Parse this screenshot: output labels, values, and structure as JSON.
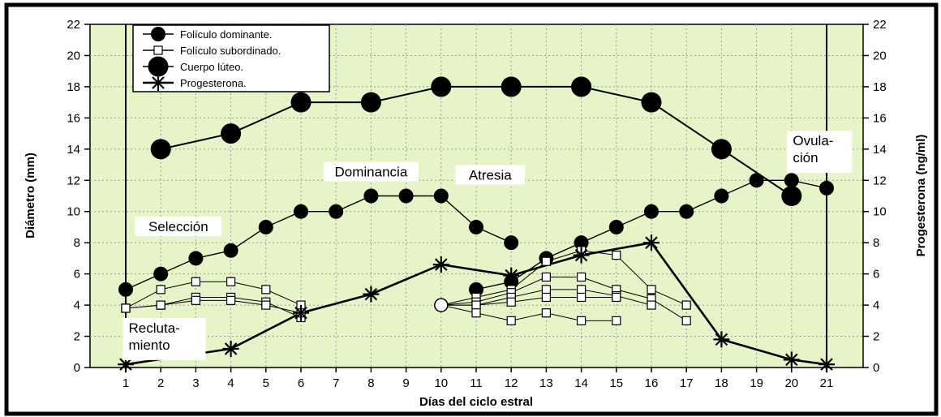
{
  "chart_data": {
    "type": "line",
    "title": "",
    "xlabel": "Días del ciclo estral",
    "ylabel_left": "Diámetro (mm)",
    "ylabel_right": "Progesterona (ng/ml)",
    "categories": [
      "1",
      "2",
      "3",
      "4",
      "5",
      "6",
      "7",
      "8",
      "9",
      "10",
      "11",
      "12",
      "13",
      "14",
      "15",
      "16",
      "17",
      "18",
      "19",
      "20",
      "21"
    ],
    "ylim": [
      0,
      22
    ],
    "y_ticks": [
      0,
      2,
      4,
      6,
      8,
      10,
      12,
      14,
      16,
      18,
      20,
      22
    ],
    "y2lim": [
      0,
      22
    ],
    "y2_ticks": [
      0,
      2,
      4,
      6,
      8,
      10,
      12,
      14,
      16,
      18,
      20,
      22
    ],
    "grid": true,
    "legend_position": "top-left",
    "colors": {
      "plot_bg": "#e6f5c8",
      "page_bg": "#ffffff",
      "line": "#000000",
      "grid": "#9a9a9a"
    },
    "series": [
      {
        "name": "Folículo dominante.",
        "marker": "filled-circle",
        "segments": [
          [
            [
              1,
              5
            ],
            [
              2,
              6
            ],
            [
              3,
              7
            ],
            [
              4,
              7.5
            ],
            [
              5,
              9
            ],
            [
              6,
              10
            ],
            [
              7,
              10
            ],
            [
              8,
              11
            ],
            [
              9,
              11
            ],
            [
              10,
              11
            ],
            [
              11,
              9
            ],
            [
              12,
              8
            ]
          ],
          [
            [
              11,
              5
            ],
            [
              12,
              5.5
            ],
            [
              13,
              7
            ],
            [
              14,
              8
            ],
            [
              15,
              9
            ],
            [
              16,
              10
            ],
            [
              17,
              10
            ],
            [
              18,
              11
            ],
            [
              19,
              12
            ],
            [
              20,
              12
            ],
            [
              21,
              11.5
            ]
          ]
        ]
      },
      {
        "name": "Folículo subordinado.",
        "marker": "open-square",
        "segments": [
          [
            [
              1,
              3.8
            ],
            [
              2,
              5
            ],
            [
              3,
              5.5
            ],
            [
              4,
              5.5
            ],
            [
              5,
              5
            ],
            [
              6,
              4
            ]
          ],
          [
            [
              1,
              3.8
            ],
            [
              2,
              4
            ],
            [
              3,
              4.5
            ],
            [
              4,
              4.5
            ],
            [
              5,
              4.2
            ],
            [
              6,
              3.2
            ]
          ],
          [
            [
              1,
              3.8
            ],
            [
              2,
              4
            ],
            [
              3,
              4.3
            ],
            [
              4,
              4.3
            ],
            [
              5,
              4
            ],
            [
              6,
              3.5
            ]
          ],
          [
            [
              10,
              4
            ],
            [
              11,
              4.5
            ],
            [
              12,
              5
            ],
            [
              13,
              6.8
            ],
            [
              14,
              7.5
            ],
            [
              15,
              7.2
            ],
            [
              16,
              5
            ],
            [
              17,
              4
            ]
          ],
          [
            [
              10,
              4
            ],
            [
              11,
              4.2
            ],
            [
              12,
              4.8
            ],
            [
              13,
              5.8
            ],
            [
              14,
              5.8
            ],
            [
              15,
              5
            ],
            [
              16,
              4.4
            ],
            [
              17,
              3
            ]
          ],
          [
            [
              10,
              4
            ],
            [
              11,
              4
            ],
            [
              12,
              4.5
            ],
            [
              13,
              5
            ],
            [
              14,
              5
            ],
            [
              15,
              4.6
            ],
            [
              16,
              4
            ]
          ],
          [
            [
              10,
              4
            ],
            [
              11,
              4
            ],
            [
              12,
              4.2
            ],
            [
              13,
              4.5
            ],
            [
              14,
              4.5
            ],
            [
              15,
              4.5
            ]
          ],
          [
            [
              10,
              4
            ],
            [
              11,
              3.5
            ],
            [
              12,
              3
            ],
            [
              13,
              3.5
            ],
            [
              14,
              3
            ],
            [
              15,
              3
            ]
          ]
        ]
      },
      {
        "name": "Cuerpo lúteo.",
        "marker": "large-filled-circle",
        "segments": [
          [
            [
              2,
              14
            ],
            [
              4,
              15
            ],
            [
              6,
              17
            ],
            [
              8,
              17
            ],
            [
              10,
              18
            ],
            [
              12,
              18
            ],
            [
              14,
              18
            ],
            [
              16,
              17
            ],
            [
              18,
              14
            ],
            [
              20,
              11
            ]
          ]
        ]
      },
      {
        "name": "Progesterona.",
        "marker": "asterisk",
        "axis": "right",
        "segments": [
          [
            [
              1,
              0.2
            ],
            [
              4,
              1.2
            ],
            [
              6,
              3.5
            ],
            [
              8,
              4.7
            ],
            [
              10,
              6.6
            ],
            [
              12,
              5.9
            ],
            [
              14,
              7.2
            ],
            [
              16,
              8
            ],
            [
              18,
              1.8
            ],
            [
              20,
              0.5
            ],
            [
              21,
              0.2
            ]
          ]
        ]
      }
    ],
    "vertical_lines_x": [
      1,
      21
    ],
    "annotations": [
      {
        "text": "Selección",
        "x": 2.5,
        "y": 8.9
      },
      {
        "text": "Dominancia",
        "x": 8.0,
        "y": 12.4
      },
      {
        "text": "Atresia",
        "x": 11.4,
        "y": 12.2
      },
      {
        "lines": [
          "Ovula-",
          "ción"
        ],
        "x": 20.8,
        "y": 14.4,
        "boxed": true
      },
      {
        "lines": [
          "Recluta-",
          "miento"
        ],
        "x": 2.1,
        "y": 2.4,
        "boxed": true
      }
    ]
  }
}
